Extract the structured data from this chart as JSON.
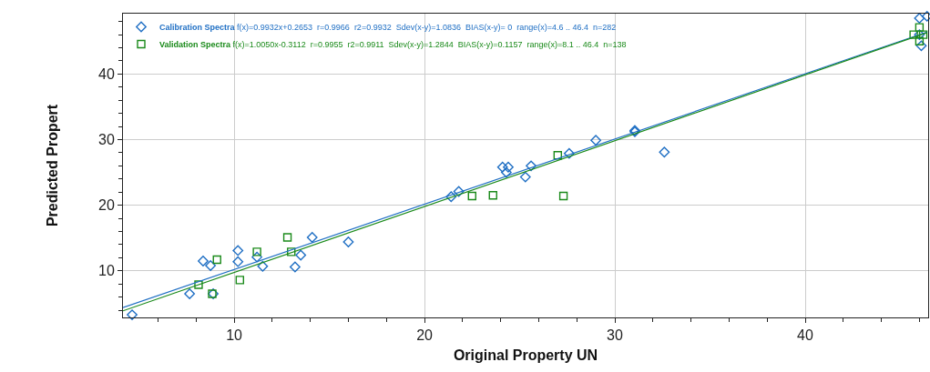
{
  "chart_data": {
    "type": "scatter",
    "xlabel": "Original Property UN",
    "ylabel": "Predicted Propert",
    "annotations": [
      "f(x)=0.9932x+0.2653  r=0.9966  r2=0.9932  Sdev(x-y)=1.0836  BIAS(x-y)= 0  range(x)=4.6 .. 46.4  n=282",
      "f(x)=1.0050x-0.3112  r=0.9955  r2=0.9911  Sdev(x-y)=1.2844  BIAS(x-y)=0.1157  range(x)=8.1 .. 46.4  n=138"
    ],
    "series": [
      {
        "name": "Calibration Spectra",
        "color": "#1f6fc4",
        "marker": "diamond",
        "x": [
          4.64,
          7.66,
          8.37,
          8.76,
          8.9,
          10.2,
          10.2,
          11.2,
          11.5,
          13.2,
          13.5,
          14.1,
          16.0,
          21.4,
          21.8,
          24.1,
          24.4,
          24.3,
          25.3,
          25.6,
          27.6,
          29.0,
          31.05,
          31.05,
          32.6,
          46.1,
          46.4,
          46.0,
          46.0
        ],
        "values": [
          3.3,
          6.5,
          11.5,
          10.8,
          6.5,
          13.1,
          11.4,
          12.1,
          10.7,
          10.6,
          12.4,
          15.1,
          14.4,
          21.3,
          22.1,
          25.8,
          25.8,
          25.0,
          24.3,
          26.0,
          27.9,
          29.9,
          31.4,
          31.2,
          28.1,
          44.3,
          48.8,
          48.5,
          46.0
        ]
      },
      {
        "name": "Validation Spectra",
        "color": "#1a8a1a",
        "marker": "square",
        "x": [
          8.13,
          8.85,
          9.1,
          10.3,
          11.2,
          12.8,
          13.0,
          22.5,
          23.6,
          27.0,
          27.3,
          46.0,
          46.2,
          46.0,
          45.7
        ],
        "values": [
          7.9,
          6.5,
          11.7,
          8.6,
          12.9,
          15.1,
          12.9,
          21.4,
          21.5,
          27.6,
          21.4,
          47.1,
          46.0,
          45.0,
          46.0
        ]
      },
      {
        "type": "line",
        "color": "#1f6fc4",
        "x": [
          4.16,
          46.4
        ],
        "values": [
          4.4,
          46.4
        ]
      },
      {
        "type": "line",
        "color": "#1a8a1a",
        "x": [
          4.16,
          46.4
        ],
        "values": [
          3.9,
          46.3
        ]
      }
    ],
    "xlim": [
      4.16,
      46.46
    ],
    "ylim": [
      2.9,
      49.2
    ],
    "xticks": [
      {
        "value": 6,
        "label": null
      },
      {
        "value": 8,
        "label": null
      },
      10,
      {
        "value": 12,
        "label": null
      },
      {
        "value": 14,
        "label": null
      },
      {
        "value": 16,
        "label": null
      },
      {
        "value": 18,
        "label": null
      },
      20,
      {
        "value": 22,
        "label": null
      },
      {
        "value": 24,
        "label": null
      },
      {
        "value": 26,
        "label": null
      },
      {
        "value": 28,
        "label": null
      },
      30,
      {
        "value": 32,
        "label": null
      },
      {
        "value": 34,
        "label": null
      },
      {
        "value": 36,
        "label": null
      },
      {
        "value": 38,
        "label": null
      },
      40,
      {
        "value": 42,
        "label": null
      },
      {
        "value": 44,
        "label": null
      },
      {
        "value": 46,
        "label": null
      }
    ],
    "yticks": [
      {
        "value": 4,
        "label": null
      },
      {
        "value": 6,
        "label": null
      },
      {
        "value": 8,
        "label": null
      },
      10,
      {
        "value": 12,
        "label": null
      },
      {
        "value": 14,
        "label": null
      },
      {
        "value": 16,
        "label": null
      },
      {
        "value": 18,
        "label": null
      },
      20,
      {
        "value": 22,
        "label": null
      },
      {
        "value": 24,
        "label": null
      },
      {
        "value": 26,
        "label": null
      },
      {
        "value": 28,
        "label": null
      },
      30,
      {
        "value": 32,
        "label": null
      },
      {
        "value": 34,
        "label": null
      },
      {
        "value": 36,
        "label": null
      },
      {
        "value": 38,
        "label": null
      },
      40,
      {
        "value": 42,
        "label": null
      },
      {
        "value": 44,
        "label": null
      },
      {
        "value": 46,
        "label": null
      },
      {
        "value": 48,
        "label": null
      }
    ],
    "grid": true,
    "legend": "top left"
  }
}
